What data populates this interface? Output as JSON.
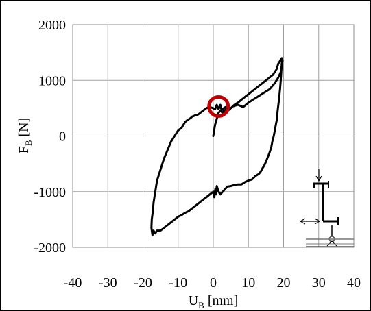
{
  "chart_data": {
    "type": "line",
    "xlabel": {
      "main": "U",
      "sub": "B",
      "unit": " [mm]"
    },
    "ylabel": {
      "main": "F",
      "sub": "B",
      "unit": " [N]"
    },
    "xlim": [
      -40,
      40
    ],
    "ylim": [
      -2000,
      2000
    ],
    "xticks": [
      -40,
      -30,
      -20,
      -10,
      0,
      10,
      20,
      30,
      40
    ],
    "yticks": [
      -2000,
      -1000,
      0,
      1000,
      2000
    ],
    "xtick_labels": [
      "-40",
      "-30",
      "-20",
      "-10",
      "0",
      "10",
      "20",
      "30",
      "40"
    ],
    "ytick_labels": [
      "-2000",
      "-1000",
      "0",
      "1000",
      "2000"
    ],
    "grid": true,
    "legend": "none",
    "series": [
      {
        "color": "#000000",
        "x": [
          0,
          0.5,
          1.5,
          2.5,
          3.5,
          4.5,
          5.5,
          7,
          8.5,
          10,
          11.5,
          13,
          14.5,
          16,
          17.5,
          18.5,
          19.2,
          19.5,
          19.6,
          19.4,
          19.2,
          19,
          18.7,
          18.3,
          18.1,
          17.8,
          17.5,
          17.2,
          16.8,
          16.5,
          16,
          15.5,
          15,
          14.5,
          14,
          13.5,
          13,
          12,
          11,
          10,
          9,
          8,
          7,
          6,
          5,
          4,
          3,
          2,
          1.5,
          1,
          0.8,
          0.6,
          0.3,
          0,
          -1,
          -2,
          -3,
          -4,
          -5,
          -6,
          -7,
          -8,
          -9,
          -10,
          -11,
          -12,
          -13,
          -14,
          -15,
          -16,
          -16.5,
          -17,
          -17.3,
          -17.6,
          -17.5,
          -17.2,
          -17,
          -16.5,
          -16,
          -15,
          -14,
          -13,
          -12,
          -11,
          -10,
          -9,
          -8.5,
          -8,
          -7.5,
          -7,
          -6.5,
          -6,
          -5.5,
          -5,
          -4.5,
          -4,
          -3,
          -2,
          -1,
          0,
          0.5,
          1,
          1.5,
          2,
          2.5,
          3,
          4,
          5,
          6,
          7,
          8,
          9,
          10,
          11,
          12,
          13,
          14,
          15,
          16,
          17,
          17.5,
          18,
          18.5,
          19,
          19.5,
          19.7
        ],
        "y": [
          0,
          200,
          420,
          480,
          520,
          470,
          530,
          560,
          520,
          600,
          660,
          720,
          780,
          840,
          950,
          1050,
          1150,
          1280,
          1390,
          1200,
          1000,
          850,
          650,
          450,
          300,
          200,
          100,
          0,
          -100,
          -200,
          -300,
          -380,
          -460,
          -530,
          -580,
          -640,
          -680,
          -720,
          -780,
          -800,
          -830,
          -870,
          -870,
          -880,
          -900,
          -910,
          -980,
          -1050,
          -1000,
          -900,
          -1050,
          -950,
          -1100,
          -1000,
          -1050,
          -1100,
          -1150,
          -1200,
          -1250,
          -1300,
          -1350,
          -1380,
          -1420,
          -1450,
          -1500,
          -1550,
          -1600,
          -1650,
          -1700,
          -1700,
          -1750,
          -1700,
          -1780,
          -1650,
          -1500,
          -1350,
          -1200,
          -1000,
          -800,
          -600,
          -400,
          -250,
          -100,
          0,
          100,
          150,
          200,
          250,
          280,
          300,
          320,
          350,
          360,
          380,
          380,
          400,
          450,
          500,
          520,
          500,
          480,
          560,
          480,
          560,
          420,
          450,
          500,
          500,
          560,
          600,
          650,
          700,
          750,
          800,
          850,
          900,
          950,
          1000,
          1050,
          1100,
          1150,
          1200,
          1300,
          1350,
          1400,
          1350
        ]
      }
    ],
    "highlight": {
      "x": 1.5,
      "y": 530,
      "color": "#c00000"
    }
  },
  "icons": {
    "inset": "structural-support-schematic-icon"
  }
}
